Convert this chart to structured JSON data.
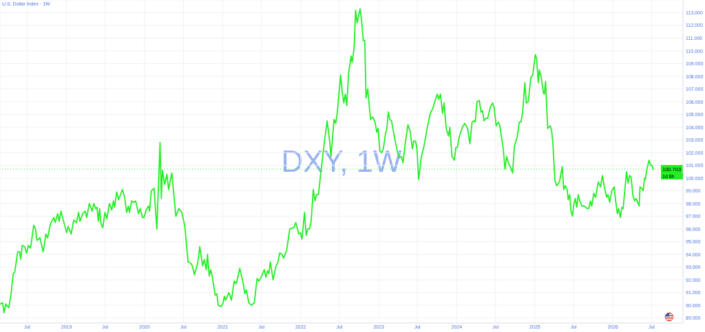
{
  "chart_data": {
    "type": "line",
    "title": "U.S. Dollar Index · 1W",
    "color": "#22ee22",
    "x": [
      "2018-02-25",
      "2018-03-08",
      "2018-03-15",
      "2018-03-23",
      "2018-04-06",
      "2018-04-16",
      "2018-04-27",
      "2018-05-04",
      "2018-05-18",
      "2018-05-27",
      "2018-06-01",
      "2018-06-08",
      "2018-06-20",
      "2018-06-28",
      "2018-07-07",
      "2018-07-17",
      "2018-08-01",
      "2018-08-09",
      "2018-08-16",
      "2018-08-30",
      "2018-09-14",
      "2018-09-27",
      "2018-10-05",
      "2018-10-18",
      "2018-11-03",
      "2018-11-09",
      "2018-11-21",
      "2018-11-28",
      "2018-12-06",
      "2018-12-25",
      "2019-01-02",
      "2019-01-09",
      "2019-01-23",
      "2019-02-04",
      "2019-02-17",
      "2019-02-27",
      "2019-03-05",
      "2019-03-18",
      "2019-03-29",
      "2019-04-06",
      "2019-04-18",
      "2019-05-01",
      "2019-05-09",
      "2019-05-18",
      "2019-05-24",
      "2019-05-30",
      "2019-06-05",
      "2019-06-12",
      "2019-06-20",
      "2019-06-30",
      "2019-07-09",
      "2019-07-21",
      "2019-08-01",
      "2019-08-09",
      "2019-08-14",
      "2019-08-24",
      "2019-09-02",
      "2019-09-20",
      "2019-09-30",
      "2019-10-10",
      "2019-10-18",
      "2019-10-23",
      "2019-11-02",
      "2019-11-11",
      "2019-11-21",
      "2019-12-04",
      "2019-12-12",
      "2019-12-23",
      "2019-12-30",
      "2020-01-09",
      "2020-01-20",
      "2020-01-25",
      "2020-02-02",
      "2020-02-15",
      "2020-02-28",
      "2020-03-14",
      "2020-03-20",
      "2020-03-25",
      "2020-04-05",
      "2020-04-15",
      "2020-04-23",
      "2020-05-08",
      "2020-05-27",
      "2020-06-10",
      "2020-06-24",
      "2020-07-08",
      "2020-07-23",
      "2020-08-05",
      "2020-08-12",
      "2020-08-22",
      "2020-09-06",
      "2020-09-16",
      "2020-09-29",
      "2020-10-07",
      "2020-10-16",
      "2020-10-22",
      "2020-10-30",
      "2020-11-06",
      "2020-11-12",
      "2020-11-27",
      "2020-12-05",
      "2020-12-11",
      "2020-12-25",
      "2021-01-03",
      "2021-01-09",
      "2021-01-15",
      "2021-01-30",
      "2021-02-11",
      "2021-02-24",
      "2021-03-06",
      "2021-03-22",
      "2021-04-05",
      "2021-04-15",
      "2021-04-22",
      "2021-05-03",
      "2021-05-16",
      "2021-05-29",
      "2021-06-11",
      "2021-06-19",
      "2021-06-30",
      "2021-07-15",
      "2021-07-22",
      "2021-07-30",
      "2021-08-05",
      "2021-08-12",
      "2021-08-25",
      "2021-09-08",
      "2021-09-15",
      "2021-09-25",
      "2021-10-06",
      "2021-10-13",
      "2021-10-27",
      "2021-11-11",
      "2021-11-30",
      "2021-12-09",
      "2021-12-23",
      "2021-12-31",
      "2022-01-07",
      "2022-01-19",
      "2022-01-27",
      "2022-02-03",
      "2022-02-11",
      "2022-02-19",
      "2022-03-01",
      "2022-03-09",
      "2022-03-16",
      "2022-03-25",
      "2022-04-06",
      "2022-04-17",
      "2022-04-24",
      "2022-05-05",
      "2022-05-16",
      "2022-05-23",
      "2022-06-06",
      "2022-06-14",
      "2022-06-21",
      "2022-06-29",
      "2022-07-07",
      "2022-07-14",
      "2022-07-22",
      "2022-07-29",
      "2022-08-05",
      "2022-08-13",
      "2022-08-25",
      "2022-08-30",
      "2022-09-08",
      "2022-09-15",
      "2022-09-22",
      "2022-10-06",
      "2022-10-13",
      "2022-10-21",
      "2022-10-28",
      "2022-11-03",
      "2022-11-11",
      "2022-11-24",
      "2022-12-04",
      "2022-12-15",
      "2022-12-23",
      "2022-12-29",
      "2023-01-07",
      "2023-01-15",
      "2023-01-23",
      "2023-02-03",
      "2023-02-08",
      "2023-02-15",
      "2023-02-22",
      "2023-03-02",
      "2023-03-16",
      "2023-04-01",
      "2023-04-09",
      "2023-04-17",
      "2023-04-25",
      "2023-05-05",
      "2023-05-18",
      "2023-05-28",
      "2023-06-08",
      "2023-06-14",
      "2023-06-23",
      "2023-06-29",
      "2023-07-07",
      "2023-07-19",
      "2023-08-01",
      "2023-08-18",
      "2023-08-31",
      "2023-09-12",
      "2023-09-22",
      "2023-10-02",
      "2023-10-09",
      "2023-10-17",
      "2023-10-27",
      "2023-11-03",
      "2023-11-13",
      "2023-11-24",
      "2023-11-30",
      "2023-12-10",
      "2023-12-21",
      "2023-12-28",
      "2024-01-04",
      "2024-01-14",
      "2024-01-28",
      "2024-02-08",
      "2024-02-21",
      "2024-03-03",
      "2024-03-13",
      "2024-03-23",
      "2024-03-28",
      "2024-04-05",
      "2024-04-16",
      "2024-04-24",
      "2024-05-01",
      "2024-05-08",
      "2024-05-17",
      "2024-05-25",
      "2024-06-07",
      "2024-06-17",
      "2024-06-24",
      "2024-07-04",
      "2024-07-13",
      "2024-07-20",
      "2024-07-29",
      "2024-08-06",
      "2024-08-14",
      "2024-08-22",
      "2024-08-30",
      "2024-09-08",
      "2024-09-19",
      "2024-09-27",
      "2024-10-10",
      "2024-10-20",
      "2024-10-28",
      "2024-11-05",
      "2024-11-15",
      "2024-11-22",
      "2024-12-01",
      "2024-12-13",
      "2024-12-22",
      "2025-01-03",
      "2025-01-09",
      "2025-01-17",
      "2025-01-22",
      "2025-01-30",
      "2025-02-10",
      "2025-02-14",
      "2025-02-20",
      "2025-03-02",
      "2025-03-13",
      "2025-03-20",
      "2025-03-26",
      "2025-04-05",
      "2025-04-13",
      "2025-04-26",
      "2025-05-09",
      "2025-05-16",
      "2025-05-23",
      "2025-06-01",
      "2025-06-06",
      "2025-06-13",
      "2025-06-19",
      "2025-06-26",
      "2025-07-02",
      "2025-07-09",
      "2025-07-16",
      "2025-07-23",
      "2025-07-30",
      "2025-08-10",
      "2025-08-20",
      "2025-09-03",
      "2025-09-10",
      "2025-09-18",
      "2025-09-24",
      "2025-10-04",
      "2025-10-12",
      "2025-10-25",
      "2025-11-04",
      "2025-11-13",
      "2025-11-22",
      "2025-12-03",
      "2025-12-09",
      "2025-12-17",
      "2025-12-27",
      "2026-01-07",
      "2026-01-14",
      "2026-01-22",
      "2026-01-28",
      "2026-02-05",
      "2026-02-12",
      "2026-02-18",
      "2026-02-24",
      "2026-03-06",
      "2026-03-13",
      "2026-03-20",
      "2026-03-27",
      "2026-04-05",
      "2026-04-13",
      "2026-04-20",
      "2026-05-04",
      "2026-05-08",
      "2026-05-16",
      "2026-05-23",
      "2026-05-29",
      "2026-06-02",
      "2026-06-08",
      "2026-06-19",
      "2026-06-27",
      "2026-07-03",
      "2026-07-09"
    ],
    "values": [
      90.1,
      90.2,
      89.4,
      90.1,
      89.8,
      90.8,
      92.5,
      92.6,
      94.2,
      94.2,
      93.6,
      94.7,
      94.6,
      94.1,
      94.7,
      94.5,
      96.3,
      96.0,
      95.1,
      95.3,
      94.2,
      95.6,
      95.3,
      96.4,
      96.9,
      96.5,
      97.2,
      96.6,
      97.4,
      96.2,
      95.7,
      96.2,
      95.6,
      96.7,
      96.5,
      97.3,
      96.6,
      97.2,
      97.4,
      96.9,
      98.0,
      97.4,
      98.0,
      97.6,
      97.7,
      96.6,
      97.6,
      96.4,
      96.1,
      97.3,
      96.8,
      98.0,
      97.5,
      98.2,
      97.7,
      98.9,
      98.3,
      99.1,
      98.5,
      97.3,
      97.8,
      97.3,
      98.2,
      98.1,
      98.2,
      97.2,
      97.6,
      96.9,
      96.9,
      97.5,
      97.8,
      97.4,
      99.0,
      99.2,
      96.0,
      102.8,
      98.4,
      100.6,
      99.5,
      100.3,
      99.1,
      100.4,
      97.0,
      97.6,
      97.3,
      96.2,
      93.4,
      93.3,
      93.1,
      92.4,
      93.3,
      94.6,
      93.1,
      93.6,
      92.8,
      94.0,
      92.3,
      92.8,
      92.4,
      90.8,
      90.9,
      90.0,
      89.9,
      90.2,
      90.7,
      90.4,
      91.0,
      90.4,
      91.9,
      91.7,
      92.9,
      91.9,
      90.9,
      91.2,
      90.2,
      90.0,
      90.2,
      92.1,
      91.9,
      92.2,
      92.8,
      92.2,
      92.7,
      92.5,
      93.4,
      92.0,
      93.1,
      93.3,
      94.1,
      94.0,
      93.7,
      94.3,
      96.0,
      96.1,
      96.5,
      95.6,
      95.7,
      95.2,
      97.3,
      95.5,
      96.0,
      96.0,
      96.6,
      99.1,
      98.2,
      98.7,
      98.7,
      100.5,
      102.1,
      103.1,
      104.5,
      103.0,
      101.7,
      104.6,
      104.3,
      105.1,
      106.6,
      108.1,
      106.8,
      105.9,
      106.6,
      105.7,
      108.2,
      109.6,
      109.1,
      110.2,
      113.2,
      112.2,
      113.3,
      112.4,
      110.8,
      110.8,
      106.3,
      107.0,
      104.6,
      104.8,
      104.4,
      103.6,
      103.9,
      102.1,
      102.0,
      102.3,
      103.6,
      103.8,
      105.2,
      104.6,
      104.5,
      103.2,
      101.9,
      101.6,
      101.7,
      101.2,
      102.7,
      104.2,
      103.7,
      102.3,
      102.9,
      102.9,
      102.3,
      99.9,
      101.6,
      102.5,
      104.1,
      105.1,
      105.5,
      106.1,
      106.6,
      106.2,
      106.6,
      105.1,
      105.9,
      103.9,
      103.3,
      104.0,
      101.7,
      101.4,
      102.4,
      102.4,
      103.3,
      104.0,
      104.3,
      103.9,
      102.7,
      104.4,
      104.5,
      104.4,
      106.0,
      106.1,
      105.2,
      105.3,
      104.5,
      104.7,
      104.7,
      105.6,
      105.9,
      105.6,
      104.1,
      104.4,
      104.2,
      103.2,
      102.3,
      100.7,
      101.7,
      101.2,
      100.9,
      100.4,
      102.5,
      103.2,
      104.4,
      104.4,
      105.2,
      107.5,
      105.9,
      106.0,
      107.9,
      108.1,
      109.7,
      109.4,
      107.5,
      108.5,
      108.0,
      106.7,
      106.6,
      107.6,
      103.9,
      104.1,
      103.8,
      102.8,
      99.8,
      99.4,
      99.7,
      100.9,
      99.1,
      99.4,
      99.1,
      98.3,
      98.7,
      97.4,
      97.0,
      97.9,
      98.4,
      97.7,
      98.7,
      98.2,
      97.8,
      97.8,
      97.6,
      97.6,
      98.2,
      97.8,
      98.8,
      98.5,
      99.7,
      99.3,
      100.2,
      99.3,
      98.5,
      98.7,
      98.1,
      99.0,
      99.3,
      98.2,
      97.2,
      97.6,
      96.9,
      97.7,
      97.6,
      98.7,
      100.5,
      99.6,
      100.2,
      100.1,
      98.6,
      98.2,
      98.4,
      97.8,
      99.3,
      99.2,
      99.0,
      100.0,
      99.9,
      100.6,
      101.4,
      101.0,
      101.0,
      100.7
    ],
    "xlim": [
      "2018-02-24",
      "2026-11-25"
    ],
    "xticks": [
      {
        "value": "2018-07-01",
        "label": "Jul"
      },
      {
        "value": "2019-01-01",
        "label": "2019"
      },
      {
        "value": "2019-07-01",
        "label": "Jul"
      },
      {
        "value": "2020-01-01",
        "label": "2020"
      },
      {
        "value": "2020-07-01",
        "label": "Jul"
      },
      {
        "value": "2021-01-01",
        "label": "2021"
      },
      {
        "value": "2021-07-01",
        "label": "Jul"
      },
      {
        "value": "2022-01-01",
        "label": "2022"
      },
      {
        "value": "2022-07-01",
        "label": "Jul"
      },
      {
        "value": "2023-01-01",
        "label": "2023"
      },
      {
        "value": "2023-07-01",
        "label": "Jul"
      },
      {
        "value": "2024-01-01",
        "label": "2024"
      },
      {
        "value": "2024-07-01",
        "label": "Jul"
      },
      {
        "value": "2025-01-01",
        "label": "2025"
      },
      {
        "value": "2025-07-01",
        "label": "Jul"
      },
      {
        "value": "2026-01-01",
        "label": "2026"
      },
      {
        "value": "2026-07-01",
        "label": "Jul"
      }
    ],
    "ylim": [
      88.6,
      114
    ],
    "yticks": [
      {
        "value": 89,
        "label": "89.000"
      },
      {
        "value": 90,
        "label": "90.000"
      },
      {
        "value": 91,
        "label": "91.000"
      },
      {
        "value": 92,
        "label": "92.000"
      },
      {
        "value": 93,
        "label": "93.000"
      },
      {
        "value": 94,
        "label": "94.000"
      },
      {
        "value": 95,
        "label": "95.000"
      },
      {
        "value": 96,
        "label": "96.000"
      },
      {
        "value": 97,
        "label": "97.000"
      },
      {
        "value": 98,
        "label": "98.000"
      },
      {
        "value": 99,
        "label": "99.000"
      },
      {
        "value": 100,
        "label": "100.000"
      },
      {
        "value": 101,
        "label": "101.000"
      },
      {
        "value": 102,
        "label": "102.000"
      },
      {
        "value": 103,
        "label": "103.000"
      },
      {
        "value": 104,
        "label": "104.000"
      },
      {
        "value": 105,
        "label": "105.000"
      },
      {
        "value": 106,
        "label": "106.000"
      },
      {
        "value": 107,
        "label": "107.000"
      },
      {
        "value": 108,
        "label": "108.000"
      },
      {
        "value": 109,
        "label": "109.000"
      },
      {
        "value": 110,
        "label": "110.000"
      },
      {
        "value": 111,
        "label": "111.000"
      },
      {
        "value": 112,
        "label": "112.000"
      },
      {
        "value": 113,
        "label": "113.000"
      }
    ],
    "grid": true,
    "ref_lines": [
      {
        "axis": "y",
        "value": 100.703,
        "label": "100.703",
        "color": "#22ee22",
        "line_style": "dotted"
      }
    ],
    "annotations": [
      "DXY, 1W",
      {
        "text": "1d 8h",
        "y": 100.703
      }
    ]
  }
}
